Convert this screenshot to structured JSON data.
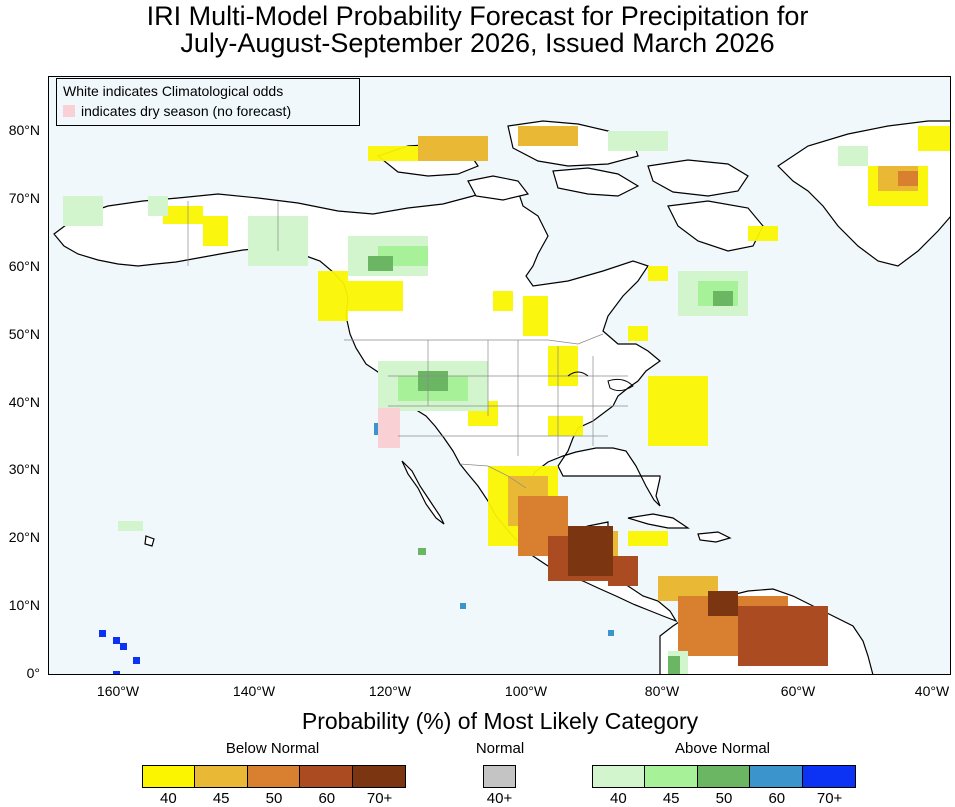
{
  "title": {
    "line1": "IRI Multi-Model Probability Forecast for Precipitation for",
    "line2": "July-August-September 2026, Issued March 2026"
  },
  "map_legend": {
    "line1": "White indicates Climatological odds",
    "line2": "indicates dry season (no forecast)"
  },
  "axes": {
    "lat_labels": [
      "80°N",
      "70°N",
      "60°N",
      "50°N",
      "40°N",
      "30°N",
      "20°N",
      "10°N",
      "0°"
    ],
    "lon_labels": [
      "160°W",
      "140°W",
      "120°W",
      "100°W",
      "80°W",
      "60°W",
      "40°W"
    ]
  },
  "colorbar": {
    "title": "Probability (%) of Most Likely Category",
    "below_normal": {
      "label": "Below Normal",
      "colors": [
        "#fbf600",
        "#e9b935",
        "#d98030",
        "#ab4b22",
        "#7b3510"
      ],
      "ticks": [
        "40",
        "45",
        "50",
        "60",
        "70+"
      ]
    },
    "normal": {
      "label": "Normal",
      "colors": [
        "#c4c4c4"
      ],
      "ticks": [
        "40+"
      ]
    },
    "above_normal": {
      "label": "Above Normal",
      "colors": [
        "#d2f5cd",
        "#a7f198",
        "#6bb663",
        "#3b95cc",
        "#0c32f4"
      ],
      "ticks": [
        "40",
        "45",
        "50",
        "60",
        "70+"
      ]
    }
  },
  "colors": {
    "ocean": "#f0f8fc",
    "land_climatology": "#ffffff",
    "coastline": "#000000",
    "borders": "#8a8a8a",
    "dry_season": "#f9d0d4"
  }
}
